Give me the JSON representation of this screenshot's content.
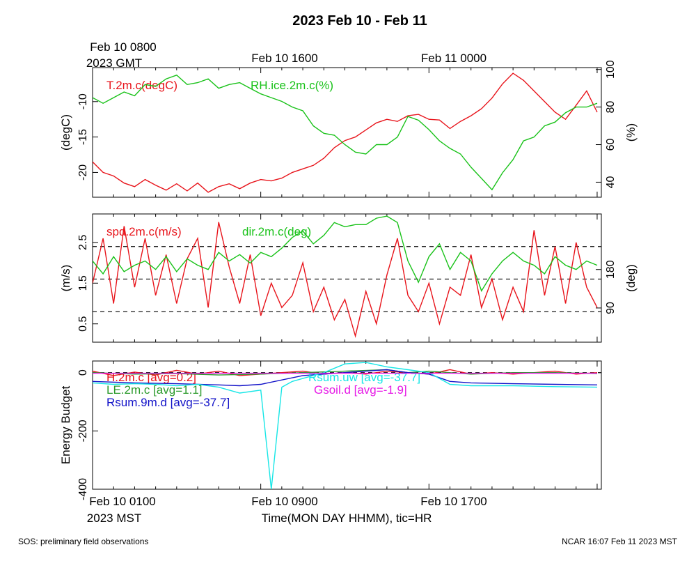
{
  "title": "2023 Feb 10 - Feb 11",
  "top_axis": {
    "first_label_line1": "Feb 10 0800",
    "first_label_line2": "2023 GMT",
    "labels": [
      "Feb 10 1600",
      "Feb 11 0000"
    ]
  },
  "bottom_axis": {
    "first_label": "Feb 10 0100",
    "first_label_line2": "2023 MST",
    "labels": [
      "Feb 10 0900",
      "Feb 10 1700"
    ],
    "title": "Time(MON DAY HHMM), tic=HR"
  },
  "footer": {
    "left": "SOS: preliminary field observations",
    "right": "NCAR 16:07 Feb 11 2023 MST"
  },
  "colors": {
    "red": "#e8141b",
    "green": "#19c219",
    "blue": "#1212c8",
    "cyan": "#16e6e6",
    "magenta": "#e619e6",
    "dark_green": "#2a9a2a"
  },
  "chart_data": [
    {
      "type": "line",
      "panel": "temperature-humidity",
      "x_unit": "hours since Feb 10 0100 MST",
      "xlim": [
        0,
        24.2
      ],
      "left_axis": {
        "label": "(degC)",
        "ylim": [
          -23.5,
          -5.2
        ],
        "ticks": [
          -20,
          -15,
          -10
        ]
      },
      "right_axis": {
        "label": "(%)",
        "ylim": [
          32,
          101
        ],
        "ticks": [
          40,
          60,
          80,
          100
        ]
      },
      "series": [
        {
          "name": "T.2m.c(degC)",
          "axis": "left",
          "color": "red",
          "x": [
            0,
            0.5,
            1,
            1.5,
            2,
            2.5,
            3,
            3.5,
            4,
            4.5,
            5,
            5.5,
            6,
            6.5,
            7,
            7.5,
            8,
            8.5,
            9,
            9.5,
            10,
            10.5,
            11,
            11.5,
            12,
            12.5,
            13,
            13.5,
            14,
            14.5,
            15,
            15.5,
            16,
            16.5,
            17,
            17.5,
            18,
            18.5,
            19,
            19.5,
            20,
            20.5,
            21,
            21.5,
            22,
            22.5,
            23,
            23.5,
            24
          ],
          "y": [
            -18.5,
            -20.0,
            -20.5,
            -21.5,
            -22.0,
            -21.0,
            -21.8,
            -22.5,
            -21.6,
            -22.6,
            -21.5,
            -22.8,
            -22.0,
            -21.6,
            -22.3,
            -21.5,
            -21.0,
            -21.2,
            -20.8,
            -20.0,
            -19.5,
            -19.0,
            -18.0,
            -16.5,
            -15.5,
            -15.0,
            -14.0,
            -13.0,
            -12.5,
            -12.8,
            -12.0,
            -11.8,
            -12.5,
            -12.6,
            -13.8,
            -12.8,
            -12.0,
            -11.0,
            -9.5,
            -7.5,
            -6.0,
            -7.0,
            -8.5,
            -10.0,
            -11.5,
            -12.5,
            -10.5,
            -8.5,
            -11.5
          ]
        },
        {
          "name": "RH.ice.2m.c(%)",
          "axis": "right",
          "color": "green",
          "x": [
            0,
            0.5,
            1,
            1.5,
            2,
            2.5,
            3,
            3.5,
            4,
            4.5,
            5,
            5.5,
            6,
            6.5,
            7,
            7.5,
            8,
            8.5,
            9,
            9.5,
            10,
            10.5,
            11,
            11.5,
            12,
            12.5,
            13,
            13.5,
            14,
            14.5,
            15,
            15.5,
            16,
            16.5,
            17,
            17.5,
            18,
            18.5,
            19,
            19.5,
            20,
            20.5,
            21,
            21.5,
            22,
            22.5,
            23,
            23.5,
            24
          ],
          "y": [
            85,
            82,
            85,
            88,
            86,
            92,
            91,
            95,
            97,
            92,
            93,
            95,
            90,
            92,
            93,
            90,
            87,
            85,
            83,
            80,
            78,
            70,
            66,
            65,
            60,
            56,
            55,
            60,
            60,
            64,
            75,
            73,
            68,
            62,
            58,
            55,
            48,
            42,
            36,
            45,
            52,
            62,
            64,
            70,
            72,
            77,
            80,
            80,
            82
          ]
        }
      ]
    },
    {
      "type": "line",
      "panel": "wind",
      "x_unit": "hours since Feb 10 0100 MST",
      "xlim": [
        0,
        24.2
      ],
      "left_axis": {
        "label": "(m/s)",
        "ylim": [
          0.05,
          3.2
        ],
        "ticks": [
          0.5,
          1.5,
          2.5
        ]
      },
      "right_axis": {
        "label": "(deg)",
        "ylim": [
          10,
          310
        ],
        "ticks": [
          90,
          180
        ]
      },
      "reference_lines_left": [
        0.8,
        1.6,
        2.4
      ],
      "series": [
        {
          "name": "spd.2m.c(m/s)",
          "axis": "left",
          "color": "red",
          "x": [
            0,
            0.5,
            1,
            1.5,
            2,
            2.5,
            3,
            3.5,
            4,
            4.5,
            5,
            5.5,
            6,
            6.5,
            7,
            7.5,
            8,
            8.5,
            9,
            9.5,
            10,
            10.5,
            11,
            11.5,
            12,
            12.5,
            13,
            13.5,
            14,
            14.5,
            15,
            15.5,
            16,
            16.5,
            17,
            17.5,
            18,
            18.5,
            19,
            19.5,
            20,
            20.5,
            21,
            21.5,
            22,
            22.5,
            23,
            23.5,
            24
          ],
          "y": [
            1.5,
            2.6,
            1.0,
            2.9,
            1.4,
            2.6,
            1.2,
            2.2,
            1.0,
            2.1,
            2.6,
            0.9,
            3.0,
            1.9,
            1.0,
            2.2,
            0.7,
            1.5,
            0.9,
            1.2,
            2.0,
            0.8,
            1.4,
            0.6,
            1.1,
            0.2,
            1.3,
            0.5,
            1.7,
            2.6,
            1.2,
            0.8,
            1.5,
            0.5,
            1.4,
            1.2,
            2.2,
            0.9,
            1.6,
            0.6,
            1.4,
            0.8,
            2.8,
            1.2,
            2.4,
            1.0,
            2.5,
            1.4,
            0.9
          ]
        },
        {
          "name": "dir.2m.c(deg)",
          "axis": "right",
          "color": "green",
          "x": [
            0,
            0.5,
            1,
            1.5,
            2,
            2.5,
            3,
            3.5,
            4,
            4.5,
            5,
            5.5,
            6,
            6.5,
            7,
            7.5,
            8,
            8.5,
            9,
            9.5,
            10,
            10.5,
            11,
            11.5,
            12,
            12.5,
            13,
            13.5,
            14,
            14.5,
            15,
            15.5,
            16,
            16.5,
            17,
            17.5,
            18,
            18.5,
            19,
            19.5,
            20,
            20.5,
            21,
            21.5,
            22,
            22.5,
            23,
            23.5,
            24
          ],
          "y": [
            200,
            170,
            210,
            175,
            190,
            200,
            180,
            210,
            175,
            205,
            190,
            180,
            220,
            200,
            215,
            195,
            220,
            210,
            230,
            255,
            270,
            240,
            260,
            290,
            280,
            285,
            285,
            300,
            305,
            290,
            200,
            150,
            210,
            240,
            180,
            220,
            200,
            130,
            170,
            200,
            220,
            200,
            190,
            170,
            210,
            190,
            180,
            200,
            190
          ]
        }
      ]
    },
    {
      "type": "line",
      "panel": "energy-budget",
      "x_unit": "hours since Feb 10 0100 MST",
      "xlim": [
        0,
        24.2
      ],
      "left_axis": {
        "label": "Energy Budget",
        "ylim": [
          -400,
          40
        ],
        "ticks": [
          -400,
          -200,
          0
        ]
      },
      "reference_lines_left": [
        0
      ],
      "series": [
        {
          "name": "H.2m.c [avg=0.2]",
          "color": "red",
          "x": [
            0,
            1,
            2,
            3,
            4,
            5,
            6,
            7,
            8,
            9,
            10,
            11,
            12,
            13,
            14,
            15,
            16,
            17,
            18,
            19,
            20,
            21,
            22,
            23,
            24
          ],
          "y": [
            5,
            -10,
            2,
            -8,
            8,
            -5,
            5,
            -10,
            -5,
            0,
            5,
            -5,
            0,
            -5,
            5,
            0,
            -5,
            10,
            -5,
            0,
            -5,
            0,
            5,
            -5,
            0
          ]
        },
        {
          "name": "LE.2m.c [avg=1.1]",
          "color": "dark_green",
          "x": [
            0,
            2,
            4,
            6,
            8,
            10,
            12,
            14,
            15,
            16,
            18,
            20,
            22,
            24
          ],
          "y": [
            0,
            -5,
            -3,
            -8,
            -5,
            0,
            5,
            10,
            0,
            5,
            -5,
            0,
            0,
            -3
          ]
        },
        {
          "name": "Rsum.9m.d [avg=-37.7]",
          "color": "blue",
          "x": [
            0,
            2,
            4,
            6,
            7,
            8,
            10,
            12,
            13,
            14,
            15,
            16,
            17,
            18,
            20,
            22,
            24
          ],
          "y": [
            -30,
            -35,
            -38,
            -42,
            -45,
            -40,
            -10,
            0,
            5,
            10,
            0,
            -5,
            -30,
            -35,
            -38,
            -40,
            -42
          ]
        },
        {
          "name": "Rsum.uw [avg=-37.7]",
          "color": "cyan",
          "x": [
            0,
            1,
            2,
            3,
            4,
            5,
            6,
            7,
            8,
            8.5,
            9,
            9.5,
            10,
            11,
            12,
            13,
            14,
            15,
            16,
            17,
            18,
            20,
            22,
            24
          ],
          "y": [
            -35,
            -40,
            -38,
            -40,
            -45,
            -40,
            -50,
            -70,
            -60,
            -400,
            -50,
            -30,
            -20,
            0,
            30,
            35,
            20,
            10,
            0,
            -40,
            -45,
            -45,
            -48,
            -50
          ]
        },
        {
          "name": "Gsoil.d [avg=-1.9]",
          "color": "magenta",
          "x": [
            0,
            24
          ],
          "y": [
            -2,
            -2
          ]
        }
      ]
    }
  ]
}
